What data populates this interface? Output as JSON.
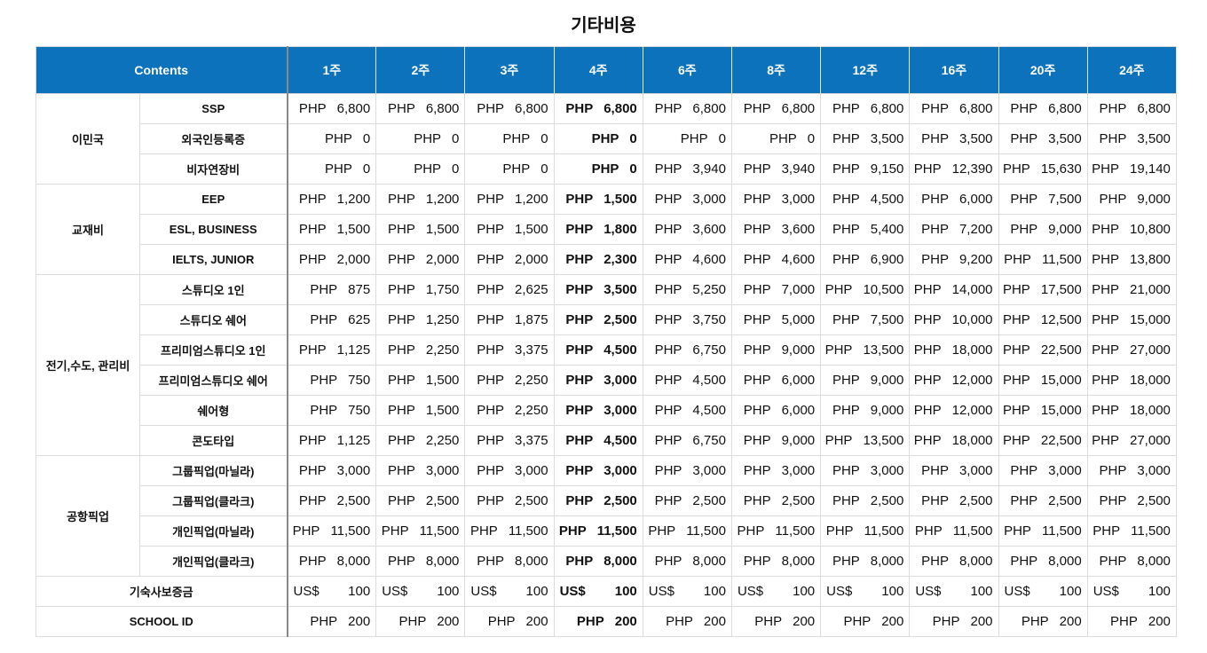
{
  "title": "기타비용",
  "table": {
    "header": {
      "contents": "Contents",
      "columns": [
        "1주",
        "2주",
        "3주",
        "4주",
        "6주",
        "8주",
        "12주",
        "16주",
        "20주",
        "24주"
      ]
    },
    "groups": [
      {
        "label": "이민국",
        "rows": [
          {
            "label": "SSP",
            "cells": [
              [
                "PHP",
                "6,800"
              ],
              [
                "PHP",
                "6,800"
              ],
              [
                "PHP",
                "6,800"
              ],
              [
                "PHP",
                "6,800"
              ],
              [
                "PHP",
                "6,800"
              ],
              [
                "PHP",
                "6,800"
              ],
              [
                "PHP",
                "6,800"
              ],
              [
                "PHP",
                "6,800"
              ],
              [
                "PHP",
                "6,800"
              ],
              [
                "PHP",
                "6,800"
              ]
            ]
          },
          {
            "label": "외국인등록증",
            "cells": [
              [
                "PHP",
                "0"
              ],
              [
                "PHP",
                "0"
              ],
              [
                "PHP",
                "0"
              ],
              [
                "PHP",
                "0"
              ],
              [
                "PHP",
                "0"
              ],
              [
                "PHP",
                "0"
              ],
              [
                "PHP",
                "3,500"
              ],
              [
                "PHP",
                "3,500"
              ],
              [
                "PHP",
                "3,500"
              ],
              [
                "PHP",
                "3,500"
              ]
            ]
          },
          {
            "label": "비자연장비",
            "cells": [
              [
                "PHP",
                "0"
              ],
              [
                "PHP",
                "0"
              ],
              [
                "PHP",
                "0"
              ],
              [
                "PHP",
                "0"
              ],
              [
                "PHP",
                "3,940"
              ],
              [
                "PHP",
                "3,940"
              ],
              [
                "PHP",
                "9,150"
              ],
              [
                "PHP",
                "12,390"
              ],
              [
                "PHP",
                "15,630"
              ],
              [
                "PHP",
                "19,140"
              ]
            ]
          }
        ]
      },
      {
        "label": "교재비",
        "rows": [
          {
            "label": "EEP",
            "cells": [
              [
                "PHP",
                "1,200"
              ],
              [
                "PHP",
                "1,200"
              ],
              [
                "PHP",
                "1,200"
              ],
              [
                "PHP",
                "1,500"
              ],
              [
                "PHP",
                "3,000"
              ],
              [
                "PHP",
                "3,000"
              ],
              [
                "PHP",
                "4,500"
              ],
              [
                "PHP",
                "6,000"
              ],
              [
                "PHP",
                "7,500"
              ],
              [
                "PHP",
                "9,000"
              ]
            ]
          },
          {
            "label": "ESL, BUSINESS",
            "cells": [
              [
                "PHP",
                "1,500"
              ],
              [
                "PHP",
                "1,500"
              ],
              [
                "PHP",
                "1,500"
              ],
              [
                "PHP",
                "1,800"
              ],
              [
                "PHP",
                "3,600"
              ],
              [
                "PHP",
                "3,600"
              ],
              [
                "PHP",
                "5,400"
              ],
              [
                "PHP",
                "7,200"
              ],
              [
                "PHP",
                "9,000"
              ],
              [
                "PHP",
                "10,800"
              ]
            ]
          },
          {
            "label": "IELTS, JUNIOR",
            "cells": [
              [
                "PHP",
                "2,000"
              ],
              [
                "PHP",
                "2,000"
              ],
              [
                "PHP",
                "2,000"
              ],
              [
                "PHP",
                "2,300"
              ],
              [
                "PHP",
                "4,600"
              ],
              [
                "PHP",
                "4,600"
              ],
              [
                "PHP",
                "6,900"
              ],
              [
                "PHP",
                "9,200"
              ],
              [
                "PHP",
                "11,500"
              ],
              [
                "PHP",
                "13,800"
              ]
            ]
          }
        ]
      },
      {
        "label": "전기,수도, 관리비",
        "rows": [
          {
            "label": "스튜디오 1인",
            "cells": [
              [
                "PHP",
                "875"
              ],
              [
                "PHP",
                "1,750"
              ],
              [
                "PHP",
                "2,625"
              ],
              [
                "PHP",
                "3,500"
              ],
              [
                "PHP",
                "5,250"
              ],
              [
                "PHP",
                "7,000"
              ],
              [
                "PHP",
                "10,500"
              ],
              [
                "PHP",
                "14,000"
              ],
              [
                "PHP",
                "17,500"
              ],
              [
                "PHP",
                "21,000"
              ]
            ]
          },
          {
            "label": "스튜디오 쉐어",
            "cells": [
              [
                "PHP",
                "625"
              ],
              [
                "PHP",
                "1,250"
              ],
              [
                "PHP",
                "1,875"
              ],
              [
                "PHP",
                "2,500"
              ],
              [
                "PHP",
                "3,750"
              ],
              [
                "PHP",
                "5,000"
              ],
              [
                "PHP",
                "7,500"
              ],
              [
                "PHP",
                "10,000"
              ],
              [
                "PHP",
                "12,500"
              ],
              [
                "PHP",
                "15,000"
              ]
            ]
          },
          {
            "label": "프리미엄스튜디오 1인",
            "cells": [
              [
                "PHP",
                "1,125"
              ],
              [
                "PHP",
                "2,250"
              ],
              [
                "PHP",
                "3,375"
              ],
              [
                "PHP",
                "4,500"
              ],
              [
                "PHP",
                "6,750"
              ],
              [
                "PHP",
                "9,000"
              ],
              [
                "PHP",
                "13,500"
              ],
              [
                "PHP",
                "18,000"
              ],
              [
                "PHP",
                "22,500"
              ],
              [
                "PHP",
                "27,000"
              ]
            ]
          },
          {
            "label": "프리미엄스튜디오 쉐어",
            "cells": [
              [
                "PHP",
                "750"
              ],
              [
                "PHP",
                "1,500"
              ],
              [
                "PHP",
                "2,250"
              ],
              [
                "PHP",
                "3,000"
              ],
              [
                "PHP",
                "4,500"
              ],
              [
                "PHP",
                "6,000"
              ],
              [
                "PHP",
                "9,000"
              ],
              [
                "PHP",
                "12,000"
              ],
              [
                "PHP",
                "15,000"
              ],
              [
                "PHP",
                "18,000"
              ]
            ]
          },
          {
            "label": "쉐어형",
            "cells": [
              [
                "PHP",
                "750"
              ],
              [
                "PHP",
                "1,500"
              ],
              [
                "PHP",
                "2,250"
              ],
              [
                "PHP",
                "3,000"
              ],
              [
                "PHP",
                "4,500"
              ],
              [
                "PHP",
                "6,000"
              ],
              [
                "PHP",
                "9,000"
              ],
              [
                "PHP",
                "12,000"
              ],
              [
                "PHP",
                "15,000"
              ],
              [
                "PHP",
                "18,000"
              ]
            ]
          },
          {
            "label": "콘도타입",
            "cells": [
              [
                "PHP",
                "1,125"
              ],
              [
                "PHP",
                "2,250"
              ],
              [
                "PHP",
                "3,375"
              ],
              [
                "PHP",
                "4,500"
              ],
              [
                "PHP",
                "6,750"
              ],
              [
                "PHP",
                "9,000"
              ],
              [
                "PHP",
                "13,500"
              ],
              [
                "PHP",
                "18,000"
              ],
              [
                "PHP",
                "22,500"
              ],
              [
                "PHP",
                "27,000"
              ]
            ]
          }
        ]
      },
      {
        "label": "공항픽업",
        "rows": [
          {
            "label": "그룹픽업(마닐라)",
            "cells": [
              [
                "PHP",
                "3,000"
              ],
              [
                "PHP",
                "3,000"
              ],
              [
                "PHP",
                "3,000"
              ],
              [
                "PHP",
                "3,000"
              ],
              [
                "PHP",
                "3,000"
              ],
              [
                "PHP",
                "3,000"
              ],
              [
                "PHP",
                "3,000"
              ],
              [
                "PHP",
                "3,000"
              ],
              [
                "PHP",
                "3,000"
              ],
              [
                "PHP",
                "3,000"
              ]
            ]
          },
          {
            "label": "그룹픽업(클라크)",
            "cells": [
              [
                "PHP",
                "2,500"
              ],
              [
                "PHP",
                "2,500"
              ],
              [
                "PHP",
                "2,500"
              ],
              [
                "PHP",
                "2,500"
              ],
              [
                "PHP",
                "2,500"
              ],
              [
                "PHP",
                "2,500"
              ],
              [
                "PHP",
                "2,500"
              ],
              [
                "PHP",
                "2,500"
              ],
              [
                "PHP",
                "2,500"
              ],
              [
                "PHP",
                "2,500"
              ]
            ]
          },
          {
            "label": "개인픽업(마닐라)",
            "cells": [
              [
                "PHP",
                "11,500"
              ],
              [
                "PHP",
                "11,500"
              ],
              [
                "PHP",
                "11,500"
              ],
              [
                "PHP",
                "11,500"
              ],
              [
                "PHP",
                "11,500"
              ],
              [
                "PHP",
                "11,500"
              ],
              [
                "PHP",
                "11,500"
              ],
              [
                "PHP",
                "11,500"
              ],
              [
                "PHP",
                "11,500"
              ],
              [
                "PHP",
                "11,500"
              ]
            ]
          },
          {
            "label": "개인픽업(클라크)",
            "cells": [
              [
                "PHP",
                "8,000"
              ],
              [
                "PHP",
                "8,000"
              ],
              [
                "PHP",
                "8,000"
              ],
              [
                "PHP",
                "8,000"
              ],
              [
                "PHP",
                "8,000"
              ],
              [
                "PHP",
                "8,000"
              ],
              [
                "PHP",
                "8,000"
              ],
              [
                "PHP",
                "8,000"
              ],
              [
                "PHP",
                "8,000"
              ],
              [
                "PHP",
                "8,000"
              ]
            ]
          }
        ]
      }
    ],
    "rows": [
      {
        "label": "기숙사보증금",
        "cells": [
          [
            "US$",
            "100"
          ],
          [
            "US$",
            "100"
          ],
          [
            "US$",
            "100"
          ],
          [
            "US$",
            "100"
          ],
          [
            "US$",
            "100"
          ],
          [
            "US$",
            "100"
          ],
          [
            "US$",
            "100"
          ],
          [
            "US$",
            "100"
          ],
          [
            "US$",
            "100"
          ],
          [
            "US$",
            "100"
          ]
        ]
      },
      {
        "label": "SCHOOL ID",
        "cells": [
          [
            "PHP",
            "200"
          ],
          [
            "PHP",
            "200"
          ],
          [
            "PHP",
            "200"
          ],
          [
            "PHP",
            "200"
          ],
          [
            "PHP",
            "200"
          ],
          [
            "PHP",
            "200"
          ],
          [
            "PHP",
            "200"
          ],
          [
            "PHP",
            "200"
          ],
          [
            "PHP",
            "200"
          ],
          [
            "PHP",
            "200"
          ]
        ]
      }
    ]
  }
}
